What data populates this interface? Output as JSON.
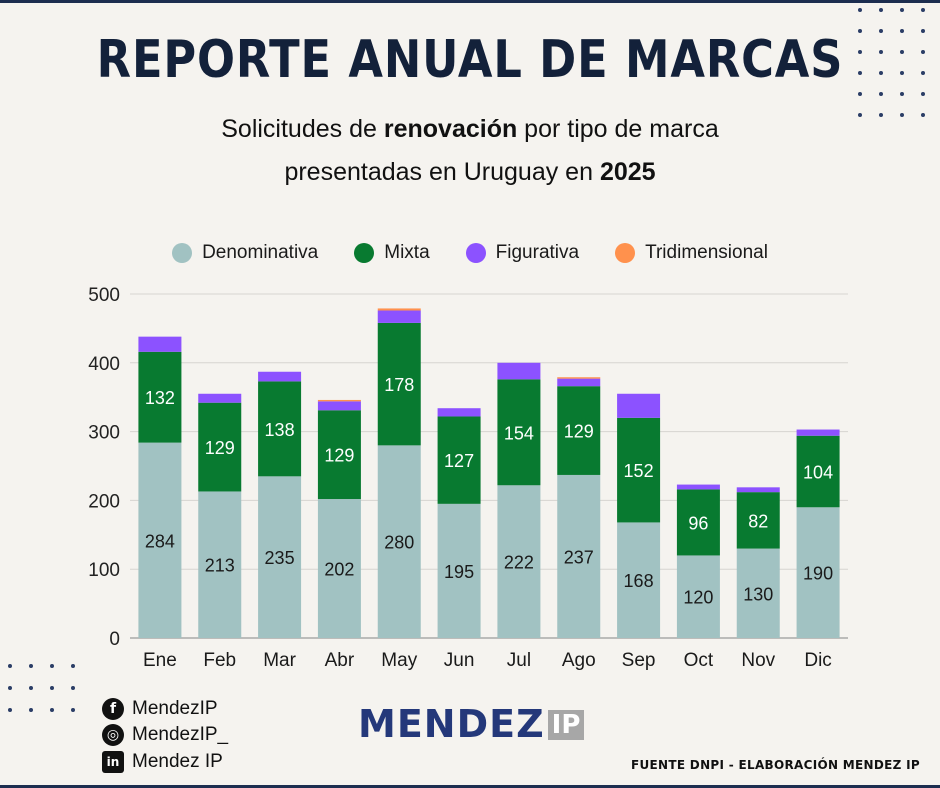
{
  "header": {
    "title": "REPORTE ANUAL DE MARCAS",
    "subtitle_line1_pre": "Solicitudes de ",
    "subtitle_line1_bold": "renovación",
    "subtitle_line1_post": " por tipo de marca",
    "subtitle_line2_pre": "presentadas en Uruguay en ",
    "subtitle_line2_bold": "2025"
  },
  "colors": {
    "background": "#f5f3ef",
    "title": "#13213a",
    "denominativa": "#a1c2c2",
    "mixta": "#087a30",
    "figurativa": "#8c52ff",
    "tridimensional": "#ff914d"
  },
  "social": [
    {
      "icon": "facebook-icon",
      "glyph": "f",
      "label": "MendezIP"
    },
    {
      "icon": "instagram-icon",
      "glyph": "◎",
      "label": "MendezIP_"
    },
    {
      "icon": "linkedin-icon",
      "glyph": "in",
      "label": "Mendez IP"
    }
  ],
  "logo": {
    "text": "MENDEZ",
    "suffix": "IP"
  },
  "source": "FUENTE DNPI - ELABORACIÓN MENDEZ IP",
  "chart_data": {
    "type": "bar",
    "stacked": true,
    "categories": [
      "Ene",
      "Feb",
      "Mar",
      "Abr",
      "May",
      "Jun",
      "Jul",
      "Ago",
      "Sep",
      "Oct",
      "Nov",
      "Dic"
    ],
    "series": [
      {
        "name": "Denominativa",
        "color": "#a1c2c2",
        "values": [
          284,
          213,
          235,
          202,
          280,
          195,
          222,
          237,
          168,
          120,
          130,
          190
        ],
        "labeled": true
      },
      {
        "name": "Mixta",
        "color": "#087a30",
        "values": [
          132,
          129,
          138,
          129,
          178,
          127,
          154,
          129,
          152,
          96,
          82,
          104
        ],
        "labeled": true
      },
      {
        "name": "Figurativa",
        "color": "#8c52ff",
        "values": [
          22,
          13,
          14,
          13,
          18,
          12,
          24,
          11,
          35,
          7,
          7,
          9
        ],
        "labeled": false
      },
      {
        "name": "Tridimensional",
        "color": "#ff914d",
        "values": [
          0,
          0,
          0,
          2,
          3,
          0,
          0,
          2,
          0,
          0,
          0,
          0
        ],
        "labeled": false
      }
    ],
    "ylim": [
      0,
      500
    ],
    "yticks": [
      0,
      100,
      200,
      300,
      400,
      500
    ],
    "grid": true,
    "legend": "top-center",
    "xlabel": "",
    "ylabel": ""
  }
}
